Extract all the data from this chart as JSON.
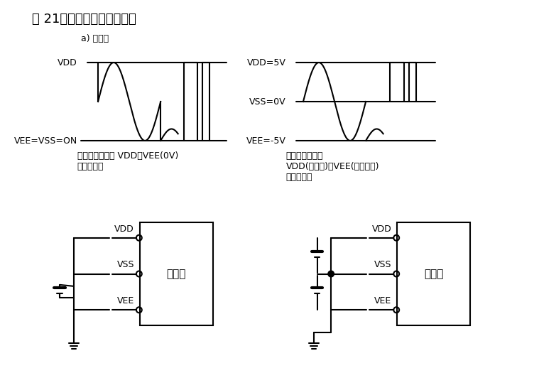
{
  "title": "図 21　電源供給と信号制御",
  "subtitle": "a) 単電源",
  "bg_color": "#ffffff",
  "text_color": "#000000",
  "line_color": "#000000",
  "left_waveform": {
    "vdd_label": "VDD",
    "vee_label": "VEE=VSS=ON",
    "caption": "アナログ信号は VDD～VEE(0V)\nの間を扱う"
  },
  "right_waveform": {
    "vdd_label": "VDD=5V",
    "vss_label": "VSS=0V",
    "vee_label": "VEE=-5V",
    "caption": "アナログ信号は\nVDD(プラス)～VEE(マイナス)\nの間を扱う"
  },
  "left_circuit": {
    "labels": [
      "VDD",
      "VSS",
      "VEE"
    ],
    "box_label": "電源部"
  },
  "right_circuit": {
    "labels": [
      "VDD",
      "VSS",
      "VEE"
    ],
    "box_label": "電源部"
  }
}
